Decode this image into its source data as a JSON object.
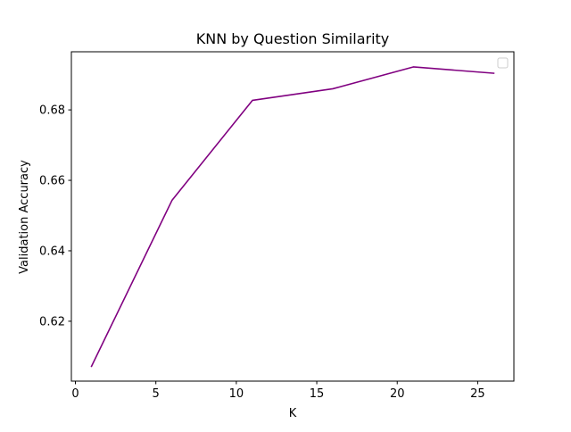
{
  "chart_data": {
    "type": "line",
    "title": "KNN by Question Similarity",
    "xlabel": "K",
    "ylabel": "Validation Accuracy",
    "x": [
      1,
      6,
      11,
      16,
      21,
      26
    ],
    "series": [
      {
        "values": [
          0.6072,
          0.6543,
          0.6827,
          0.686,
          0.6922,
          0.6904
        ],
        "color": "#800080"
      }
    ],
    "xlim": [
      -0.25,
      27.25
    ],
    "ylim": [
      0.603,
      0.6965
    ],
    "xticks": [
      0,
      5,
      10,
      15,
      20,
      25
    ],
    "xtick_labels": [
      "0",
      "5",
      "10",
      "15",
      "20",
      "25"
    ],
    "yticks": [
      0.62,
      0.64,
      0.66,
      0.68
    ],
    "ytick_labels": [
      "0.62",
      "0.64",
      "0.66",
      "0.68"
    ],
    "grid": false,
    "legend": {
      "placement": "top-right",
      "entries": []
    }
  }
}
